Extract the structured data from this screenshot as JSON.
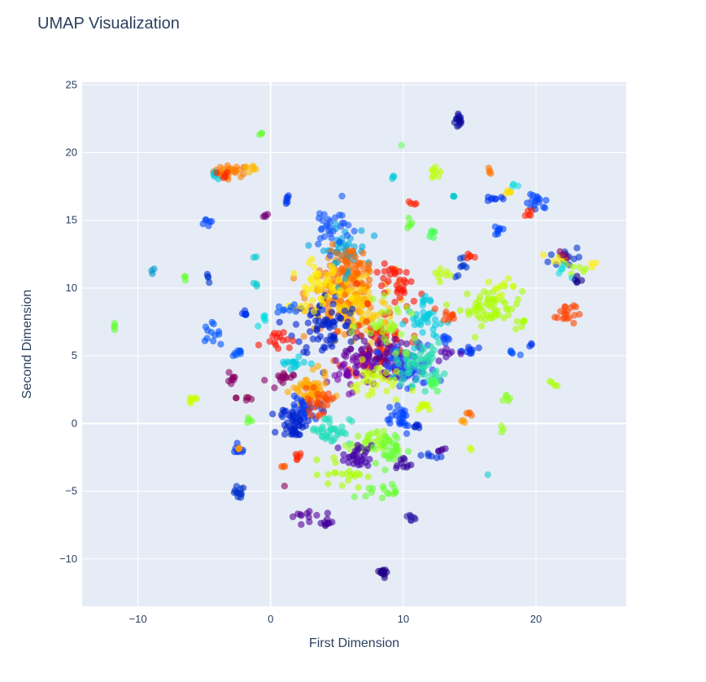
{
  "chart_data": {
    "type": "scatter",
    "title": "UMAP Visualization",
    "xlabel": "First Dimension",
    "ylabel": "Second Dimension",
    "xlim": [
      -14.2,
      26.8
    ],
    "ylim": [
      -13.5,
      25.2
    ],
    "x_ticks": [
      -10,
      0,
      10,
      20
    ],
    "y_ticks": [
      -10,
      -5,
      0,
      5,
      10,
      15,
      20,
      25
    ],
    "x_tick_labels": [
      "−10",
      "0",
      "10",
      "20"
    ],
    "y_tick_labels": [
      "−10",
      "−5",
      "0",
      "5",
      "10",
      "15",
      "20",
      "25"
    ],
    "background": "#e5ecf6",
    "grid": true,
    "grid_color": "#ffffff",
    "marker_opacity": 0.6,
    "colorscale": "rainbow (purple-blue-cyan-green-yellow-orange-red)",
    "clusters": [
      {
        "x": 14.2,
        "y": 22.4,
        "spread": [
          0.3,
          0.6
        ],
        "color": "#0a0a9a",
        "n": 14
      },
      {
        "x": -0.8,
        "y": 21.3,
        "spread": [
          0.2,
          0.2
        ],
        "color": "#66ff33",
        "n": 3
      },
      {
        "x": 9.9,
        "y": 20.5,
        "spread": [
          0.1,
          0.1
        ],
        "color": "#66ff66",
        "n": 1
      },
      {
        "x": -3.0,
        "y": 18.6,
        "spread": [
          1.2,
          0.4
        ],
        "color": "#ff8000",
        "n": 30
      },
      {
        "x": -4.1,
        "y": 18.5,
        "spread": [
          0.4,
          0.4
        ],
        "color": "#00ccdd",
        "n": 5
      },
      {
        "x": -3.6,
        "y": 18.3,
        "spread": [
          0.4,
          0.3
        ],
        "color": "#ff2200",
        "n": 5
      },
      {
        "x": -1.6,
        "y": 18.8,
        "spread": [
          0.6,
          0.3
        ],
        "color": "#ffbb00",
        "n": 6
      },
      {
        "x": 12.4,
        "y": 18.5,
        "spread": [
          0.4,
          0.5
        ],
        "color": "#bbff00",
        "n": 8
      },
      {
        "x": 16.5,
        "y": 18.6,
        "spread": [
          0.2,
          0.2
        ],
        "color": "#ff7700",
        "n": 4
      },
      {
        "x": 9.3,
        "y": 18.1,
        "spread": [
          0.2,
          0.2
        ],
        "color": "#00ccdd",
        "n": 3
      },
      {
        "x": 18.3,
        "y": 17.6,
        "spread": [
          0.3,
          0.2
        ],
        "color": "#22dddd",
        "n": 4
      },
      {
        "x": 17.8,
        "y": 17.1,
        "spread": [
          0.4,
          0.2
        ],
        "color": "#ffdd00",
        "n": 5
      },
      {
        "x": 20.1,
        "y": 16.2,
        "spread": [
          0.8,
          0.6
        ],
        "color": "#0044ff",
        "n": 16
      },
      {
        "x": 19.5,
        "y": 15.6,
        "spread": [
          0.3,
          0.3
        ],
        "color": "#ff2200",
        "n": 5
      },
      {
        "x": 16.9,
        "y": 16.6,
        "spread": [
          0.6,
          0.2
        ],
        "color": "#0033ee",
        "n": 8
      },
      {
        "x": 13.7,
        "y": 16.8,
        "spread": [
          0.2,
          0.2
        ],
        "color": "#00cccc",
        "n": 3
      },
      {
        "x": 10.8,
        "y": 16.2,
        "spread": [
          0.3,
          0.3
        ],
        "color": "#ff2200",
        "n": 4
      },
      {
        "x": 1.1,
        "y": 16.5,
        "spread": [
          0.3,
          0.4
        ],
        "color": "#0033ee",
        "n": 6
      },
      {
        "x": 10.3,
        "y": 15.0,
        "spread": [
          0.6,
          0.6
        ],
        "color": "#66ff33",
        "n": 5
      },
      {
        "x": -4.8,
        "y": 14.8,
        "spread": [
          0.5,
          0.4
        ],
        "color": "#0044ff",
        "n": 6
      },
      {
        "x": -0.4,
        "y": 15.4,
        "spread": [
          0.3,
          0.2
        ],
        "color": "#770077",
        "n": 4
      },
      {
        "x": 17.2,
        "y": 14.3,
        "spread": [
          0.5,
          0.5
        ],
        "color": "#0044ff",
        "n": 8
      },
      {
        "x": 12.3,
        "y": 14.0,
        "spread": [
          0.4,
          0.4
        ],
        "color": "#44ff55",
        "n": 6
      },
      {
        "x": 22.2,
        "y": 12.3,
        "spread": [
          1.1,
          0.8
        ],
        "color": "#0033cc",
        "n": 16
      },
      {
        "x": 21.9,
        "y": 12.2,
        "spread": [
          0.7,
          0.4
        ],
        "color": "#ffee00",
        "n": 9
      },
      {
        "x": 23.0,
        "y": 11.5,
        "spread": [
          0.6,
          0.4
        ],
        "color": "#aaff00",
        "n": 5
      },
      {
        "x": 24.4,
        "y": 11.8,
        "spread": [
          0.3,
          0.2
        ],
        "color": "#ffee00",
        "n": 3
      },
      {
        "x": 21.8,
        "y": 11.2,
        "spread": [
          0.6,
          0.4
        ],
        "color": "#11dddd",
        "n": 5
      },
      {
        "x": 23.1,
        "y": 10.5,
        "spread": [
          0.5,
          0.3
        ],
        "color": "#110088",
        "n": 5
      },
      {
        "x": 22.2,
        "y": 12.5,
        "spread": [
          0.4,
          0.3
        ],
        "color": "#880066",
        "n": 4
      },
      {
        "x": 22.2,
        "y": 8.2,
        "spread": [
          0.7,
          0.9
        ],
        "color": "#ff4400",
        "n": 18
      },
      {
        "x": 16.6,
        "y": 8.6,
        "spread": [
          2.1,
          1.2
        ],
        "color": "#aaff00",
        "n": 55
      },
      {
        "x": 17.4,
        "y": 10.1,
        "spread": [
          1.0,
          0.5
        ],
        "color": "#ccff00",
        "n": 10
      },
      {
        "x": -8.8,
        "y": 11.3,
        "spread": [
          0.2,
          0.2
        ],
        "color": "#0099cc",
        "n": 3
      },
      {
        "x": -6.4,
        "y": 10.7,
        "spread": [
          0.2,
          0.2
        ],
        "color": "#66ff33",
        "n": 3
      },
      {
        "x": -4.7,
        "y": 10.7,
        "spread": [
          0.2,
          0.3
        ],
        "color": "#0033cc",
        "n": 4
      },
      {
        "x": -1.2,
        "y": 10.3,
        "spread": [
          0.3,
          0.2
        ],
        "color": "#00cccc",
        "n": 3
      },
      {
        "x": -1.1,
        "y": 12.3,
        "spread": [
          0.2,
          0.2
        ],
        "color": "#00cccc",
        "n": 2
      },
      {
        "x": -11.8,
        "y": 7.2,
        "spread": [
          0.3,
          0.3
        ],
        "color": "#66ff33",
        "n": 4
      },
      {
        "x": -4.5,
        "y": 6.7,
        "spread": [
          0.6,
          0.6
        ],
        "color": "#0055ff",
        "n": 12
      },
      {
        "x": -2.0,
        "y": 7.9,
        "spread": [
          0.4,
          0.4
        ],
        "color": "#0033ee",
        "n": 6
      },
      {
        "x": -0.4,
        "y": 7.6,
        "spread": [
          0.5,
          0.4
        ],
        "color": "#00dddd",
        "n": 5
      },
      {
        "x": -2.5,
        "y": 5.2,
        "spread": [
          0.4,
          0.3
        ],
        "color": "#0055ff",
        "n": 8
      },
      {
        "x": -2.9,
        "y": 3.4,
        "spread": [
          0.3,
          0.8
        ],
        "color": "#880066",
        "n": 8
      },
      {
        "x": -5.9,
        "y": 1.8,
        "spread": [
          0.5,
          0.5
        ],
        "color": "#ccff00",
        "n": 7
      },
      {
        "x": -1.8,
        "y": 1.9,
        "spread": [
          0.7,
          0.3
        ],
        "color": "#880055",
        "n": 6
      },
      {
        "x": -1.6,
        "y": 0.3,
        "spread": [
          0.3,
          0.4
        ],
        "color": "#66ff33",
        "n": 4
      },
      {
        "x": -2.4,
        "y": -2.0,
        "spread": [
          0.5,
          0.3
        ],
        "color": "#0033ee",
        "n": 8
      },
      {
        "x": -2.3,
        "y": -1.9,
        "spread": [
          0.3,
          0.2
        ],
        "color": "#ff9900",
        "n": 3
      },
      {
        "x": -2.5,
        "y": -5.1,
        "spread": [
          0.5,
          0.4
        ],
        "color": "#0033cc",
        "n": 12
      },
      {
        "x": 1.1,
        "y": -4.7,
        "spread": [
          0.1,
          0.1
        ],
        "color": "#880055",
        "n": 1
      },
      {
        "x": 2.0,
        "y": -2.5,
        "spread": [
          0.4,
          0.4
        ],
        "color": "#ff2200",
        "n": 6
      },
      {
        "x": 0.9,
        "y": -3.3,
        "spread": [
          0.2,
          0.3
        ],
        "color": "#ff5500",
        "n": 3
      },
      {
        "x": 5.5,
        "y": 9.5,
        "spread": [
          2.4,
          2.2
        ],
        "color": "#ff8000",
        "n": 150
      },
      {
        "x": 6.5,
        "y": 8.5,
        "spread": [
          2.6,
          2.6
        ],
        "color": "#ffcc00",
        "n": 80
      },
      {
        "x": 4.2,
        "y": 7.2,
        "spread": [
          2.2,
          2.2
        ],
        "color": "#0022cc",
        "n": 70
      },
      {
        "x": 8.2,
        "y": 5.6,
        "spread": [
          2.2,
          2.0
        ],
        "color": "#ff2a00",
        "n": 75
      },
      {
        "x": 7.8,
        "y": 5.0,
        "spread": [
          2.0,
          1.6
        ],
        "color": "#5a0090",
        "n": 65
      },
      {
        "x": 10.3,
        "y": 4.0,
        "spread": [
          2.0,
          1.6
        ],
        "color": "#2244ff",
        "n": 70
      },
      {
        "x": 11.2,
        "y": 4.4,
        "spread": [
          1.6,
          1.4
        ],
        "color": "#22ddaa",
        "n": 55
      },
      {
        "x": 5.5,
        "y": 12.8,
        "spread": [
          1.6,
          1.6
        ],
        "color": "#00aadd",
        "n": 45
      },
      {
        "x": 6.0,
        "y": 11.5,
        "spread": [
          1.5,
          1.4
        ],
        "color": "#ff6600",
        "n": 40
      },
      {
        "x": 9.8,
        "y": 10.2,
        "spread": [
          1.6,
          1.4
        ],
        "color": "#ff1100",
        "n": 35
      },
      {
        "x": 3.5,
        "y": 10.2,
        "spread": [
          1.8,
          1.6
        ],
        "color": "#ffee00",
        "n": 40
      },
      {
        "x": 11.8,
        "y": 7.5,
        "spread": [
          1.4,
          1.2
        ],
        "color": "#00ccdd",
        "n": 30
      },
      {
        "x": 6.0,
        "y": 4.0,
        "spread": [
          1.6,
          1.4
        ],
        "color": "#7700aa",
        "n": 35
      },
      {
        "x": 8.0,
        "y": 3.0,
        "spread": [
          1.8,
          1.4
        ],
        "color": "#ccff00",
        "n": 30
      },
      {
        "x": 4.5,
        "y": 14.5,
        "spread": [
          1.4,
          1.6
        ],
        "color": "#1155ff",
        "n": 30
      },
      {
        "x": 9.0,
        "y": 7.2,
        "spread": [
          2.0,
          1.5
        ],
        "color": "#99ff22",
        "n": 30
      },
      {
        "x": 3.0,
        "y": 2.3,
        "spread": [
          1.2,
          1.2
        ],
        "color": "#ffaa00",
        "n": 60
      },
      {
        "x": 2.5,
        "y": 1.0,
        "spread": [
          1.2,
          1.0
        ],
        "color": "#0033ee",
        "n": 35
      },
      {
        "x": 3.5,
        "y": 1.5,
        "spread": [
          1.0,
          0.8
        ],
        "color": "#ff4400",
        "n": 25
      },
      {
        "x": 1.8,
        "y": 0.0,
        "spread": [
          1.0,
          1.0
        ],
        "color": "#0022cc",
        "n": 40
      },
      {
        "x": 4.5,
        "y": -0.5,
        "spread": [
          1.4,
          1.0
        ],
        "color": "#22ddbb",
        "n": 35
      },
      {
        "x": 0.5,
        "y": 6.3,
        "spread": [
          1.0,
          0.6
        ],
        "color": "#ff1100",
        "n": 15
      },
      {
        "x": 0.7,
        "y": 3.2,
        "spread": [
          0.9,
          0.6
        ],
        "color": "#880066",
        "n": 15
      },
      {
        "x": 1.5,
        "y": 4.5,
        "spread": [
          1.0,
          0.6
        ],
        "color": "#00ccdd",
        "n": 15
      },
      {
        "x": 7.5,
        "y": -1.5,
        "spread": [
          1.4,
          0.8
        ],
        "color": "#99ff22",
        "n": 40
      },
      {
        "x": 6.5,
        "y": -2.5,
        "spread": [
          1.0,
          0.8
        ],
        "color": "#4400aa",
        "n": 30
      },
      {
        "x": 9.0,
        "y": -2.0,
        "spread": [
          1.2,
          1.2
        ],
        "color": "#66ff33",
        "n": 25
      },
      {
        "x": 5.5,
        "y": -3.7,
        "spread": [
          1.5,
          1.0
        ],
        "color": "#aaff00",
        "n": 20
      },
      {
        "x": 8.5,
        "y": -5.0,
        "spread": [
          1.2,
          0.5
        ],
        "color": "#66ff33",
        "n": 15
      },
      {
        "x": 10.0,
        "y": -3.0,
        "spread": [
          0.6,
          0.5
        ],
        "color": "#330099",
        "n": 10
      },
      {
        "x": 2.5,
        "y": -6.8,
        "spread": [
          1.0,
          0.5
        ],
        "color": "#550099",
        "n": 10
      },
      {
        "x": 4.2,
        "y": -7.2,
        "spread": [
          0.4,
          0.5
        ],
        "color": "#440099",
        "n": 10
      },
      {
        "x": 10.5,
        "y": -7.0,
        "spread": [
          0.4,
          0.3
        ],
        "color": "#3322aa",
        "n": 8
      },
      {
        "x": 8.7,
        "y": -11.0,
        "spread": [
          0.4,
          0.3
        ],
        "color": "#220088",
        "n": 14
      },
      {
        "x": 9.5,
        "y": 0.5,
        "spread": [
          1.2,
          1.2
        ],
        "color": "#0044ff",
        "n": 25
      },
      {
        "x": 11.5,
        "y": 1.5,
        "spread": [
          0.6,
          0.5
        ],
        "color": "#ccff00",
        "n": 8
      },
      {
        "x": 11.0,
        "y": -0.2,
        "spread": [
          0.4,
          0.2
        ],
        "color": "#0022cc",
        "n": 6
      },
      {
        "x": 12.1,
        "y": -2.5,
        "spread": [
          0.8,
          0.3
        ],
        "color": "#0033dd",
        "n": 6
      },
      {
        "x": 12.9,
        "y": -1.9,
        "spread": [
          0.4,
          0.2
        ],
        "color": "#440099",
        "n": 5
      },
      {
        "x": 15.0,
        "y": 0.7,
        "spread": [
          0.2,
          0.2
        ],
        "color": "#ff6600",
        "n": 4
      },
      {
        "x": 14.5,
        "y": 0.2,
        "spread": [
          0.2,
          0.2
        ],
        "color": "#ff9900",
        "n": 3
      },
      {
        "x": 15.1,
        "y": -1.8,
        "spread": [
          0.1,
          0.1
        ],
        "color": "#ccff00",
        "n": 2
      },
      {
        "x": 16.4,
        "y": -3.8,
        "spread": [
          0.1,
          0.1
        ],
        "color": "#11cccc",
        "n": 1
      },
      {
        "x": 17.6,
        "y": -0.4,
        "spread": [
          0.2,
          0.2
        ],
        "color": "#99ff22",
        "n": 3
      },
      {
        "x": 17.8,
        "y": 1.8,
        "spread": [
          0.3,
          0.4
        ],
        "color": "#88ff22",
        "n": 5
      },
      {
        "x": 15.1,
        "y": 5.3,
        "spread": [
          1.0,
          0.4
        ],
        "color": "#0033ee",
        "n": 10
      },
      {
        "x": 13.4,
        "y": 5.2,
        "spread": [
          0.8,
          0.5
        ],
        "color": "#5500aa",
        "n": 8
      },
      {
        "x": 18.2,
        "y": 5.3,
        "spread": [
          0.4,
          0.2
        ],
        "color": "#0055ff",
        "n": 5
      },
      {
        "x": 19.7,
        "y": 5.7,
        "spread": [
          0.2,
          0.2
        ],
        "color": "#0033ee",
        "n": 3
      },
      {
        "x": 18.9,
        "y": 7.4,
        "spread": [
          0.4,
          0.5
        ],
        "color": "#aaff00",
        "n": 6
      },
      {
        "x": 21.3,
        "y": 2.9,
        "spread": [
          0.3,
          0.3
        ],
        "color": "#aaff00",
        "n": 4
      },
      {
        "x": 13.5,
        "y": 8.0,
        "spread": [
          0.6,
          0.4
        ],
        "color": "#ff4400",
        "n": 10
      },
      {
        "x": 13.1,
        "y": 6.3,
        "spread": [
          0.4,
          0.4
        ],
        "color": "#0044ff",
        "n": 6
      },
      {
        "x": 14.5,
        "y": 11.5,
        "spread": [
          0.6,
          0.8
        ],
        "color": "#0033cc",
        "n": 8
      },
      {
        "x": 13.0,
        "y": 11.0,
        "spread": [
          0.7,
          0.6
        ],
        "color": "#bbff00",
        "n": 8
      },
      {
        "x": 15.0,
        "y": 12.3,
        "spread": [
          0.4,
          0.3
        ],
        "color": "#ff2200",
        "n": 5
      },
      {
        "x": 11.8,
        "y": 9.2,
        "spread": [
          0.6,
          0.4
        ],
        "color": "#00ccdd",
        "n": 6
      },
      {
        "x": 12.4,
        "y": 3.0,
        "spread": [
          0.5,
          0.6
        ],
        "color": "#44ff55",
        "n": 8
      },
      {
        "x": 1.0,
        "y": 8.5,
        "spread": [
          0.6,
          0.5
        ],
        "color": "#0055ff",
        "n": 8
      }
    ]
  }
}
